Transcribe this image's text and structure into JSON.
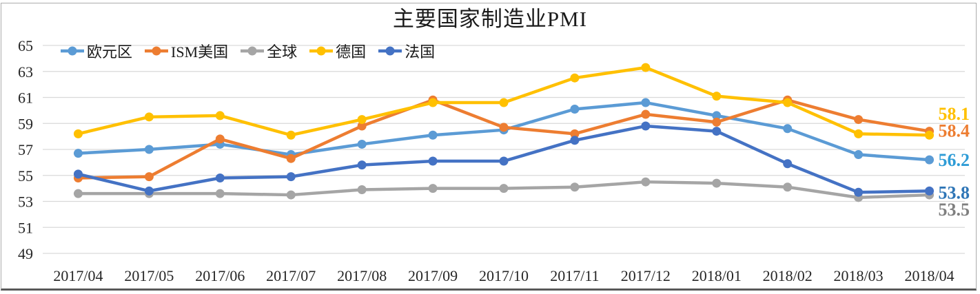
{
  "title": "主要国家制造业PMI",
  "chart_data": {
    "type": "line",
    "title": "主要国家制造业PMI",
    "categories": [
      "2017/04",
      "2017/05",
      "2017/06",
      "2017/07",
      "2017/08",
      "2017/09",
      "2017/10",
      "2017/11",
      "2017/12",
      "2018/01",
      "2018/02",
      "2018/03",
      "2018/04"
    ],
    "y_ticks": [
      "65",
      "63",
      "61",
      "59",
      "57",
      "55",
      "53",
      "51",
      "49"
    ],
    "ylim": [
      49,
      65
    ],
    "grid": "horizontal-only",
    "legend_position": "top-left-inside",
    "series": [
      {
        "name": "欧元区",
        "color": "#5B9BD5",
        "values": [
          56.7,
          57.0,
          57.4,
          56.6,
          57.4,
          58.1,
          58.5,
          60.1,
          60.6,
          59.6,
          58.6,
          56.6,
          56.2
        ],
        "end_label": "56.2",
        "end_label_color": "#2E9CD6"
      },
      {
        "name": "ISM美国",
        "color": "#ED7D31",
        "values": [
          54.8,
          54.9,
          57.8,
          56.3,
          58.8,
          60.8,
          58.7,
          58.2,
          59.7,
          59.1,
          60.8,
          59.3,
          58.4
        ],
        "end_label": "58.4",
        "end_label_color": "#ED7D31"
      },
      {
        "name": "全球",
        "color": "#A5A5A5",
        "values": [
          53.6,
          53.6,
          53.6,
          53.5,
          53.9,
          54.0,
          54.0,
          54.1,
          54.5,
          54.4,
          54.1,
          53.3,
          53.5
        ],
        "end_label": "53.5",
        "end_label_color": "#7F7F7F"
      },
      {
        "name": "德国",
        "color": "#FFC000",
        "values": [
          58.2,
          59.5,
          59.6,
          58.1,
          59.3,
          60.6,
          60.6,
          62.5,
          63.3,
          61.1,
          60.6,
          58.2,
          58.1
        ],
        "end_label": "58.1",
        "end_label_color": "#FFC000"
      },
      {
        "name": "法国",
        "color": "#4472C4",
        "values": [
          55.1,
          53.8,
          54.8,
          54.9,
          55.8,
          56.1,
          56.1,
          57.7,
          58.8,
          58.4,
          55.9,
          53.7,
          53.8
        ],
        "end_label": "53.8",
        "end_label_color": "#2E75B6"
      }
    ]
  },
  "colors": {
    "background": "#FFFFFF",
    "gridline": "#D9D9D9",
    "axis_text": "#262626",
    "frame_border": "#ABABAB",
    "frame_bottom": "#595959"
  }
}
